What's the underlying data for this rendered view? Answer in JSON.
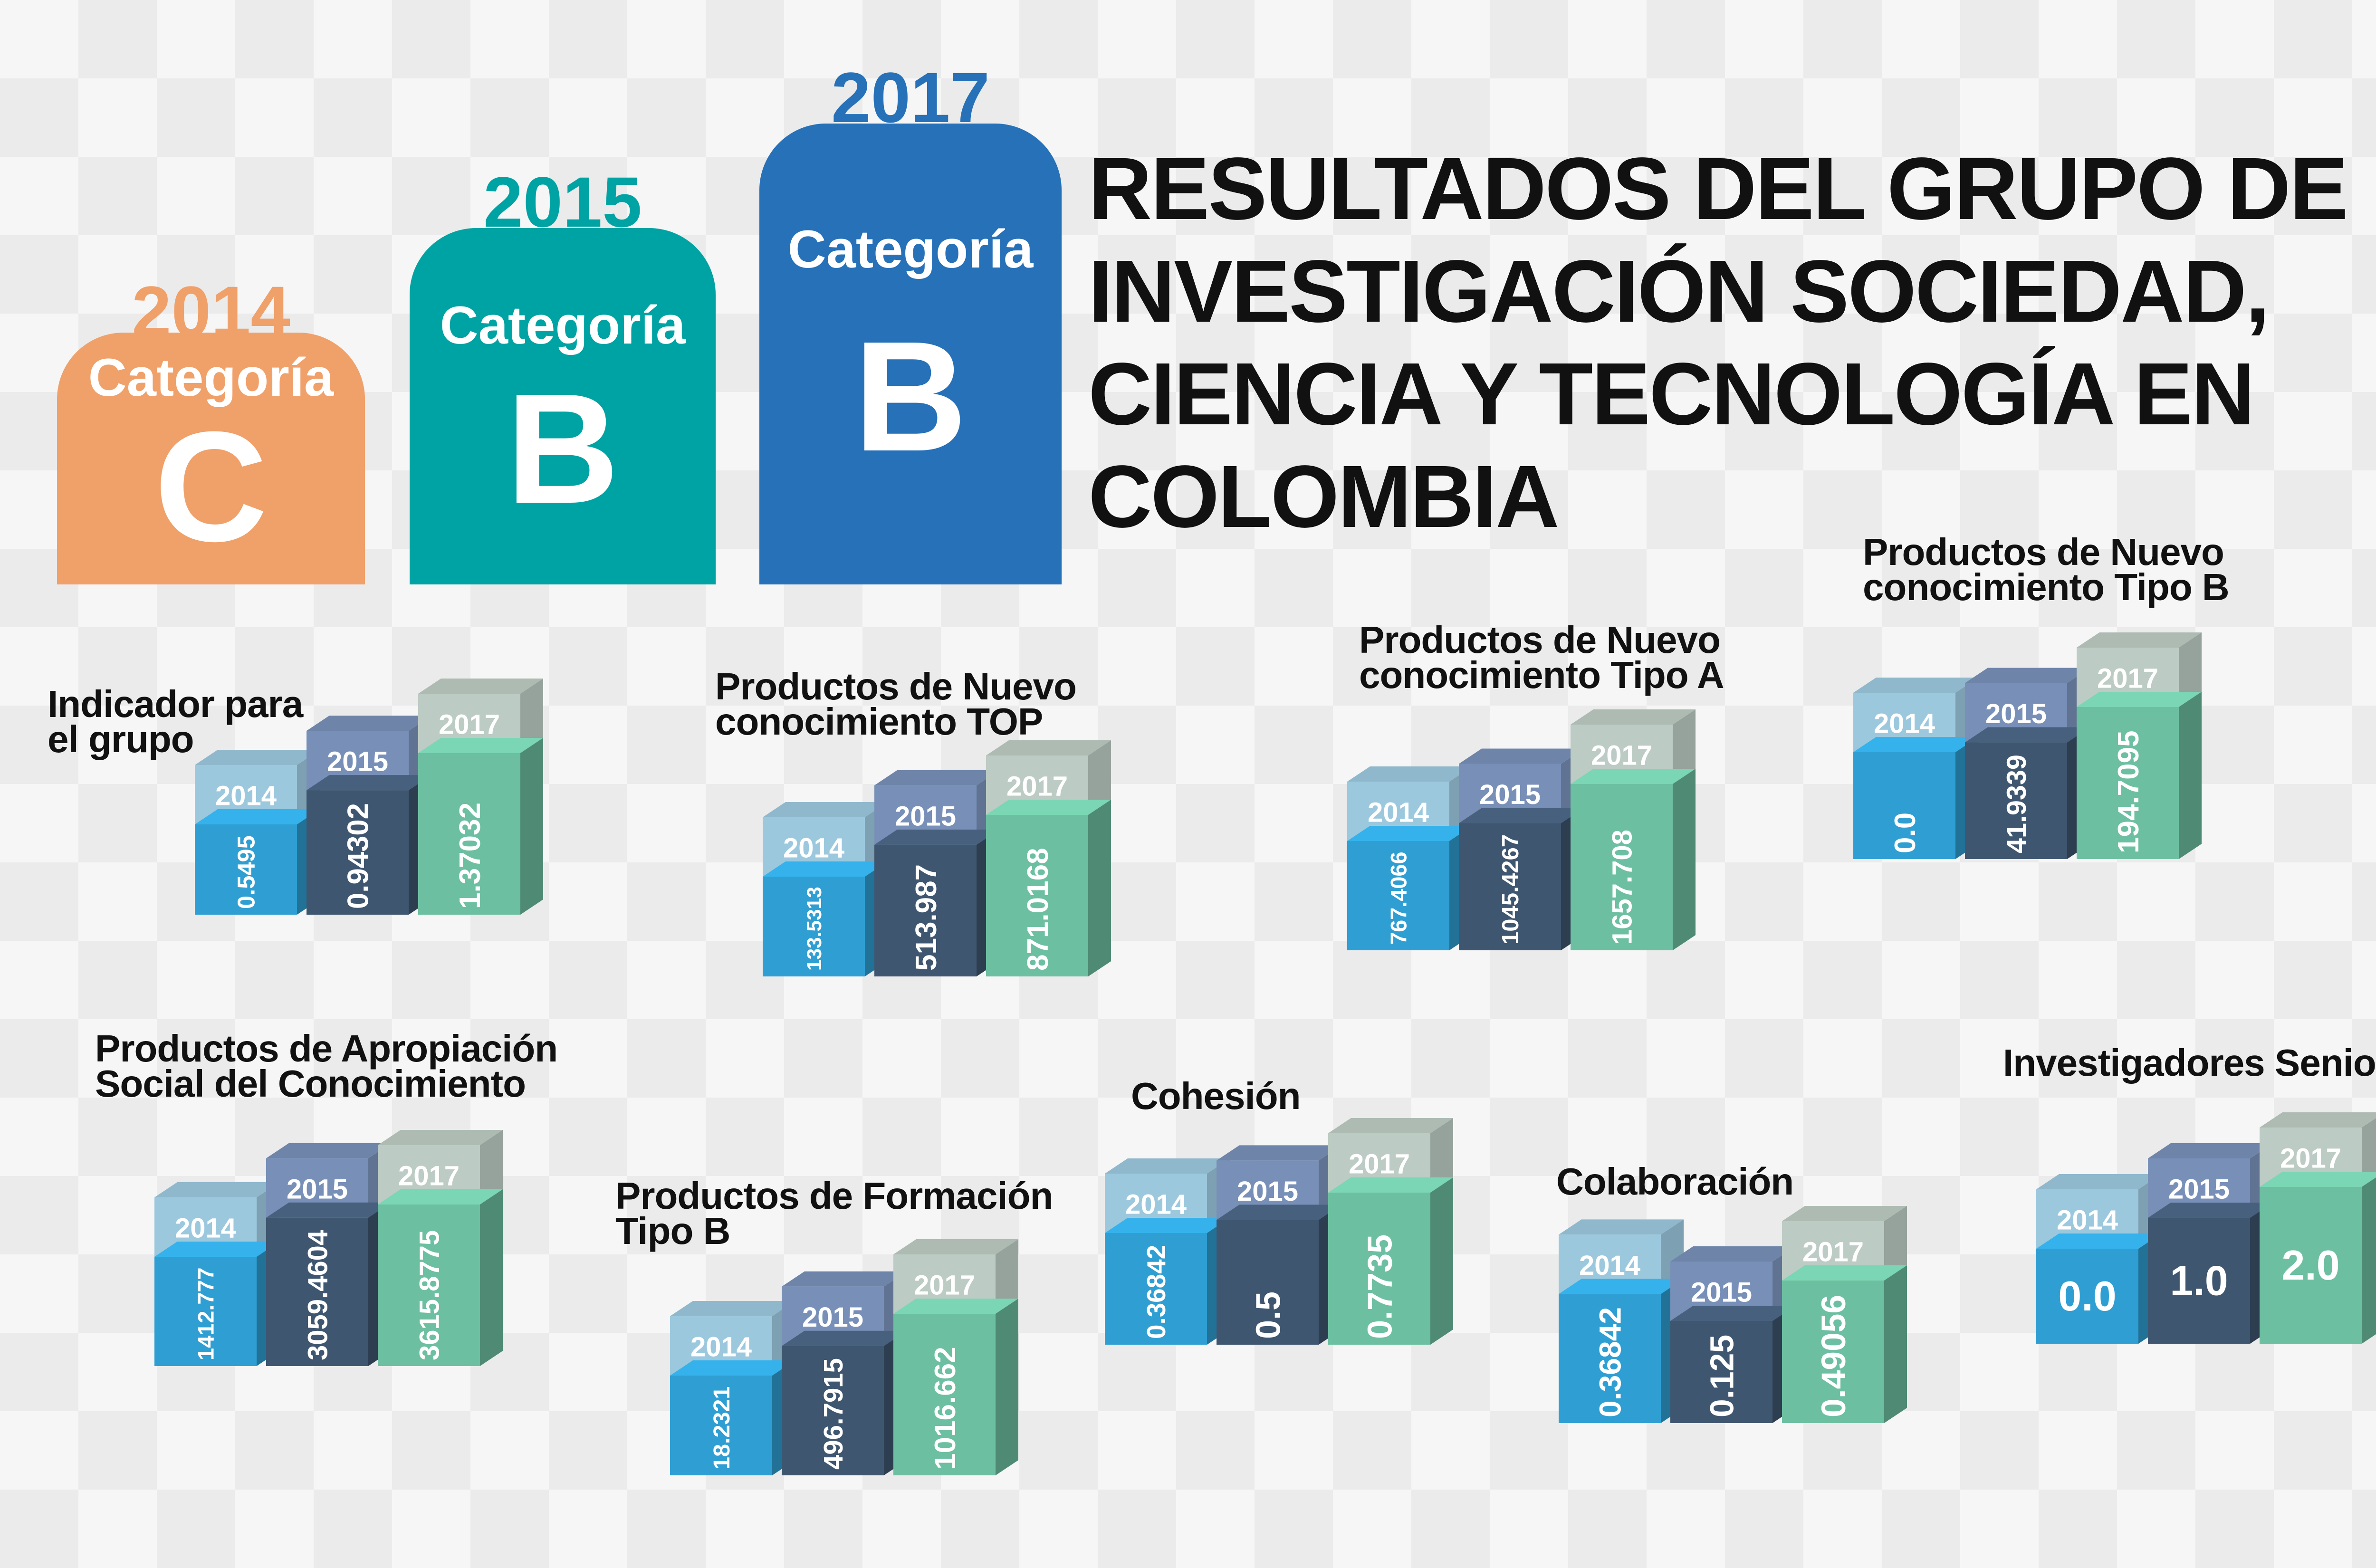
{
  "title": "RESULTADOS DEL GRUPO DE\nINVESTIGACIÓN SOCIEDAD,\nCIENCIA Y TECNOLOGÍA EN\nCOLOMBIA",
  "categories_header": [
    {
      "year": "2014",
      "label": "Categoría",
      "letter": "C",
      "color": "#f0a069"
    },
    {
      "year": "2015",
      "label": "Categoría",
      "letter": "B",
      "color": "#00a3a3"
    },
    {
      "year": "2017",
      "label": "Categoría",
      "letter": "B",
      "color": "#2671b8"
    }
  ],
  "colors": {
    "bar_2014": "#2f9fd3",
    "cap_2014": "#9cc8de",
    "bar_2015": "#3f5670",
    "cap_2015": "#7890b8",
    "bar_2017": "#6dbfa1",
    "cap_2017": "#bccbc3"
  },
  "chart_data": [
    {
      "type": "bar",
      "title": "Indicador para\nel grupo",
      "categories": [
        "2014",
        "2015",
        "2017"
      ],
      "labels": [
        "0.5495",
        "0.94302",
        "1.37032"
      ],
      "values": [
        0.5495,
        0.94302,
        1.37032
      ]
    },
    {
      "type": "bar",
      "title": "Productos de Nuevo\nconocimiento TOP",
      "categories": [
        "2014",
        "2015",
        "2017"
      ],
      "labels": [
        "133.5313",
        "513.987",
        "871.0168"
      ],
      "values": [
        133.5313,
        513.987,
        871.0168
      ]
    },
    {
      "type": "bar",
      "title": "Productos de Nuevo\nconocimiento Tipo A",
      "categories": [
        "2014",
        "2015",
        "2017"
      ],
      "labels": [
        "767.4066",
        "1045.4267",
        "1657.708"
      ],
      "values": [
        767.4066,
        1045.4267,
        1657.708
      ]
    },
    {
      "type": "bar",
      "title": "Productos de Nuevo\nconocimiento Tipo B",
      "categories": [
        "2014",
        "2015",
        "2017"
      ],
      "labels": [
        "0.0",
        "41.9339",
        "194.7095"
      ],
      "values": [
        0.0,
        41.9339,
        194.7095
      ]
    },
    {
      "type": "bar",
      "title": "Productos de Apropiación\nSocial del Conocimiento",
      "categories": [
        "2014",
        "2015",
        "2017"
      ],
      "labels": [
        "1412.777",
        "3059.4604",
        "3615.8775"
      ],
      "values": [
        1412.777,
        3059.4604,
        3615.8775
      ]
    },
    {
      "type": "bar",
      "title": "Productos de Formación\nTipo B",
      "categories": [
        "2014",
        "2015",
        "2017"
      ],
      "labels": [
        "18.2321",
        "496.7915",
        "1016.662"
      ],
      "values": [
        18.2321,
        496.7915,
        1016.662
      ]
    },
    {
      "type": "bar",
      "title": "Cohesión",
      "categories": [
        "2014",
        "2015",
        "2017"
      ],
      "labels": [
        "0.36842",
        "0.5",
        "0.7735"
      ],
      "values": [
        0.36842,
        0.5,
        0.7735
      ]
    },
    {
      "type": "bar",
      "title": "Colaboración",
      "categories": [
        "2014",
        "2015",
        "2017"
      ],
      "labels": [
        "0.36842",
        "0.125",
        "0.49056"
      ],
      "values": [
        0.36842,
        0.125,
        0.49056
      ]
    },
    {
      "type": "bar",
      "title": "Investigadores Seniors",
      "categories": [
        "2014",
        "2015",
        "2017"
      ],
      "labels": [
        "0.0",
        "1.0",
        "2.0"
      ],
      "values": [
        0.0,
        1.0,
        2.0
      ]
    }
  ]
}
